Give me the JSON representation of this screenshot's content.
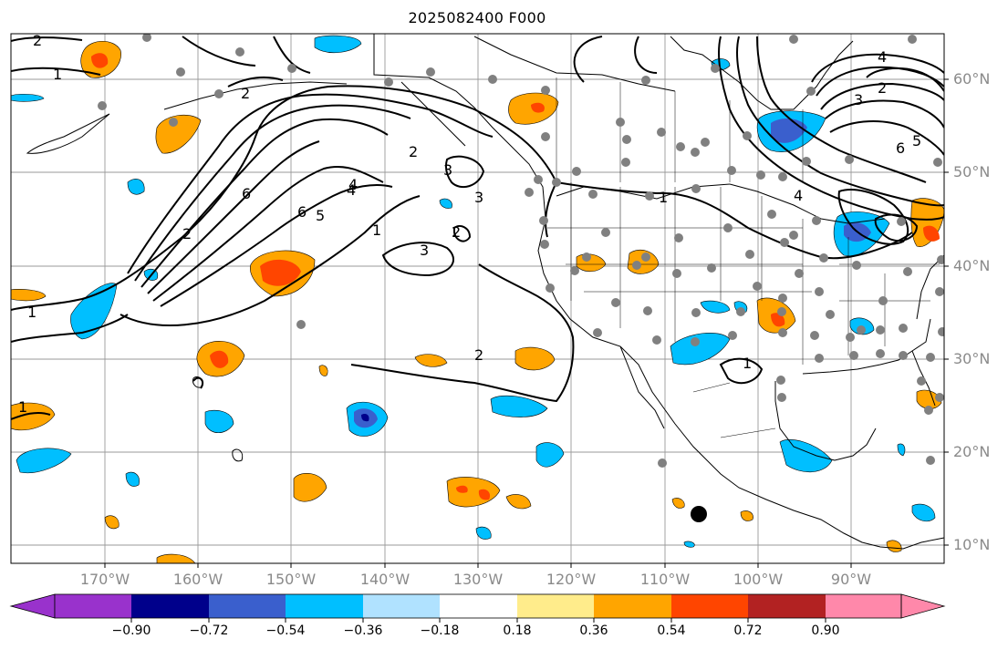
{
  "title": "2025082400 F000",
  "map": {
    "projection": "equirectangular",
    "lon_range": [
      -180,
      -80
    ],
    "lat_range": [
      8,
      65
    ],
    "lat_labels": [
      "60°N",
      "50°N",
      "40°N",
      "30°N",
      "20°N",
      "10°N"
    ],
    "lon_labels": [
      "170°W",
      "160°W",
      "150°W",
      "140°W",
      "130°W",
      "120°W",
      "110°W",
      "100°W",
      "90°W"
    ],
    "contour_labels": [
      "1",
      "2",
      "2",
      "1",
      "6",
      "5",
      "4",
      "3",
      "6",
      "4",
      "1",
      "2",
      "3",
      "2",
      "3",
      "2",
      "1",
      "2",
      "4",
      "3",
      "2",
      "6",
      "5",
      "4",
      "1",
      "1"
    ],
    "marker": {
      "lon": -106,
      "lat": 13.5
    }
  },
  "colorbar": {
    "ticks": [
      "−0.90",
      "−0.72",
      "−0.54",
      "−0.36",
      "−0.18",
      "0.18",
      "0.36",
      "0.54",
      "0.72",
      "0.90"
    ],
    "colors": [
      "#9932cc",
      "#00008b",
      "#3a5fcd",
      "#00bfff",
      "#b0e2ff",
      "#ffffff",
      "#ffec8b",
      "#ffa500",
      "#ff4500",
      "#b22222",
      "#ff88aa"
    ]
  },
  "colors": {
    "grid": "#999999",
    "coast": "#000000",
    "station": "#808080",
    "label": "#8a8a8a"
  }
}
